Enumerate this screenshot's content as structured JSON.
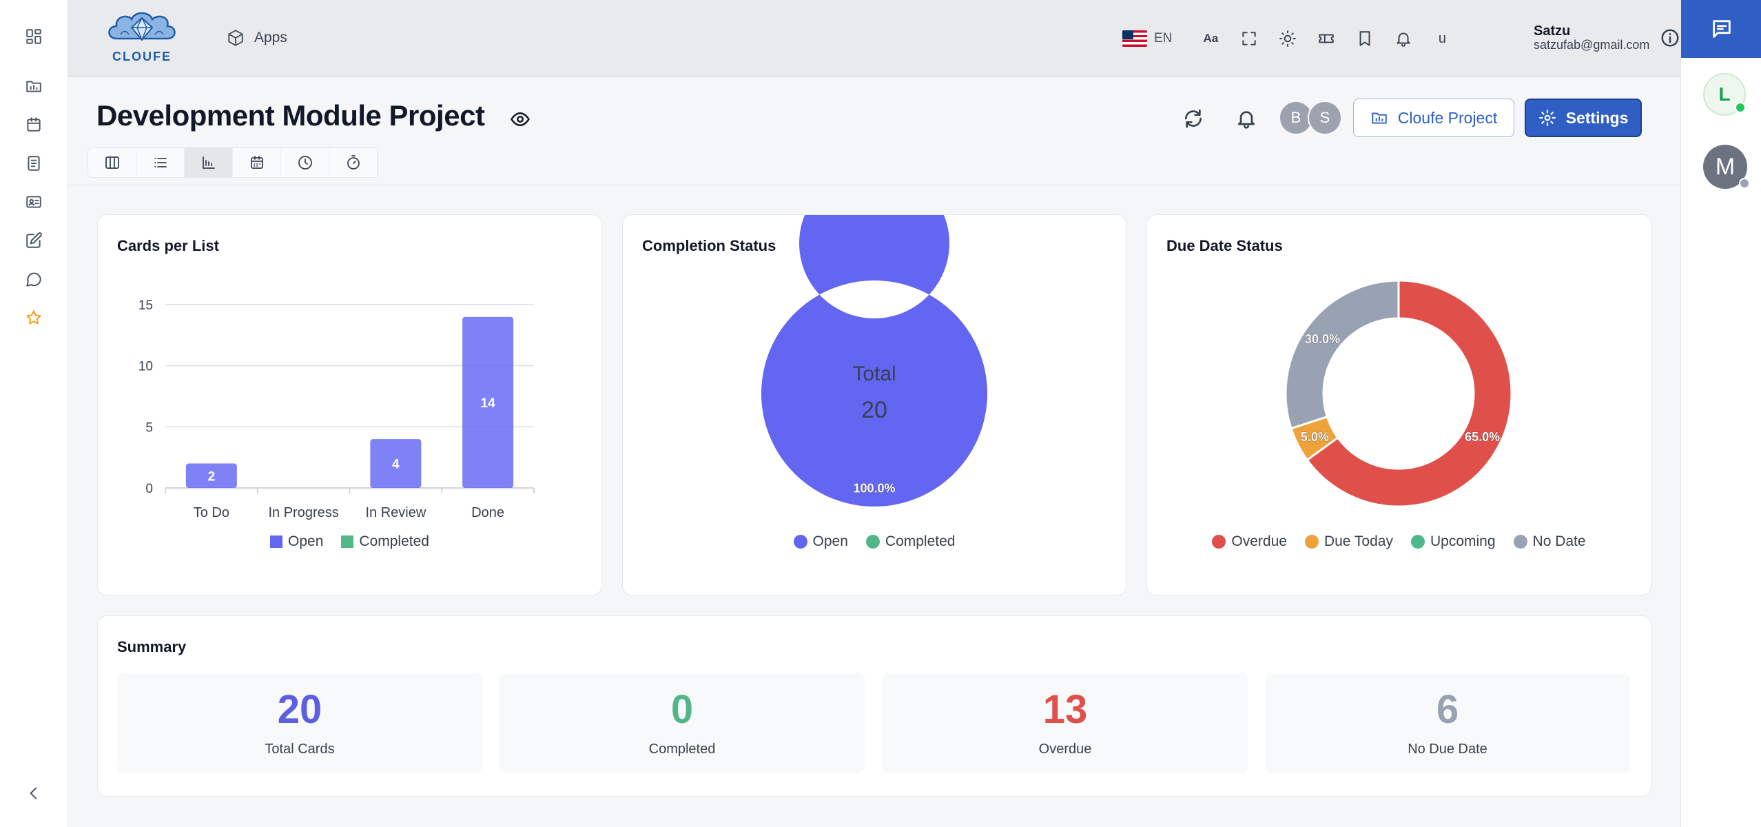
{
  "header": {
    "logo_text": "CLOUFE",
    "apps_label": "Apps",
    "language": "EN",
    "font_size_label": "Aa",
    "user_initial": "u",
    "user_name": "Satzu",
    "user_email": "satzufab@gmail.com"
  },
  "left_sidebar": {
    "icons": [
      "dashboard-icon",
      "folder-chart-icon",
      "calendar-icon",
      "document-icon",
      "contact-card-icon",
      "edit-icon",
      "chat-bubble-icon",
      "star-icon",
      "collapse-chevron-icon"
    ]
  },
  "right_sidebar": {
    "avatar1_letter": "L",
    "avatar2_letter": "M"
  },
  "project": {
    "title": "Development Module Project",
    "members": [
      "B",
      "S"
    ],
    "project_button": "Cloufe Project",
    "settings_button": "Settings"
  },
  "view_tabs": [
    "board-view",
    "list-view",
    "chart-view",
    "calendar-view",
    "timeline-view",
    "timer-view"
  ],
  "active_view": "chart-view",
  "colors": {
    "open": "#6366f1",
    "completed": "#52b788",
    "overdue": "#e0504a",
    "due_today": "#eea23a",
    "upcoming": "#4cb98a",
    "no_date": "#98a2b3",
    "primary": "#2f5fc4"
  },
  "chart_data": [
    {
      "type": "bar",
      "title": "Cards per List",
      "categories": [
        "To Do",
        "In Progress",
        "In Review",
        "Done"
      ],
      "series": [
        {
          "name": "Open",
          "values": [
            2,
            0,
            4,
            14
          ]
        },
        {
          "name": "Completed",
          "values": [
            0,
            0,
            0,
            0
          ]
        }
      ],
      "ylim": [
        0,
        15
      ],
      "yticks": [
        0,
        5,
        10,
        15
      ],
      "grid": true,
      "legend": "bottom"
    },
    {
      "type": "pie",
      "title": "Completion Status",
      "labels": [
        "Open",
        "Completed"
      ],
      "values": [
        20,
        0
      ],
      "slice_labels": [
        "100.0%",
        ""
      ],
      "center_label": "Total",
      "center_value": "20",
      "legend": "bottom"
    },
    {
      "type": "pie",
      "title": "Due Date Status",
      "labels": [
        "Overdue",
        "Due Today",
        "Upcoming",
        "No Date"
      ],
      "values": [
        13,
        1,
        0,
        6
      ],
      "slice_labels": [
        "65.0%",
        "5.0%",
        "",
        "30.0%"
      ],
      "legend": "bottom"
    }
  ],
  "summary": {
    "title": "Summary",
    "tiles": [
      {
        "value": "20",
        "label": "Total Cards",
        "color": "#5b5fe0"
      },
      {
        "value": "0",
        "label": "Completed",
        "color": "#52b788"
      },
      {
        "value": "13",
        "label": "Overdue",
        "color": "#e0504a"
      },
      {
        "value": "6",
        "label": "No Due Date",
        "color": "#98a2b3"
      }
    ]
  }
}
